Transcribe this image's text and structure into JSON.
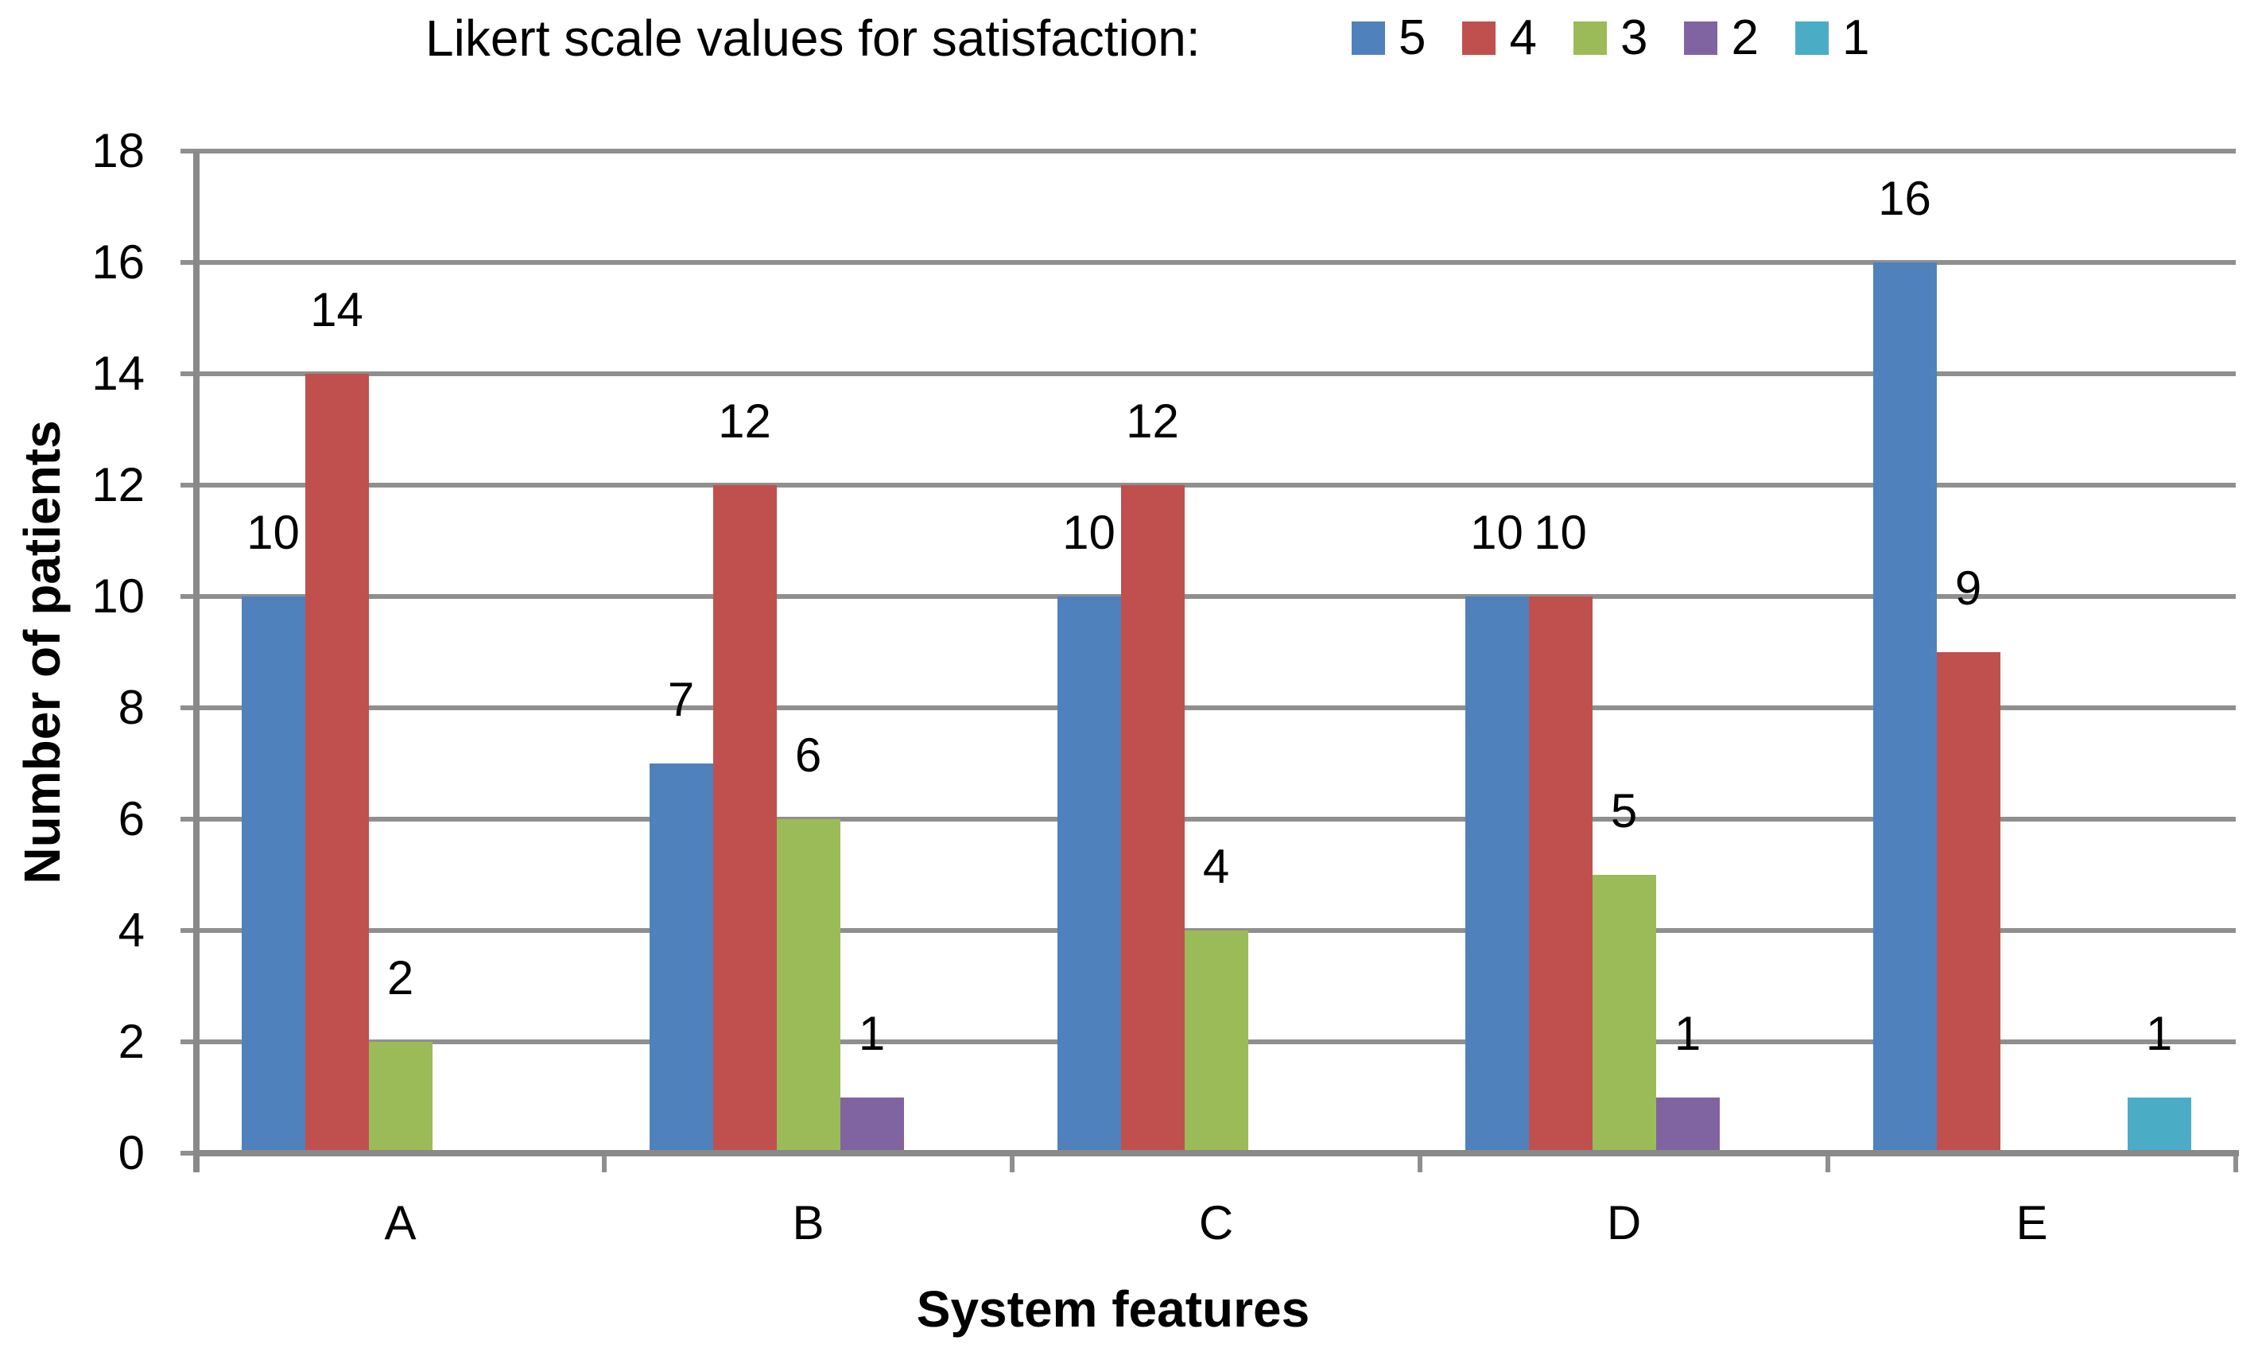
{
  "chart_data": {
    "type": "bar",
    "title": "Likert scale values for satisfaction:",
    "xlabel": "System features",
    "ylabel": "Number of patients",
    "categories": [
      "A",
      "B",
      "C",
      "D",
      "E"
    ],
    "series": [
      {
        "name": "5",
        "color": "#4F81BD",
        "values": [
          10,
          7,
          10,
          10,
          16
        ]
      },
      {
        "name": "4",
        "color": "#C0504D",
        "values": [
          14,
          12,
          12,
          10,
          9
        ]
      },
      {
        "name": "3",
        "color": "#9BBB59",
        "values": [
          2,
          6,
          4,
          5,
          0
        ]
      },
      {
        "name": "2",
        "color": "#8064A2",
        "values": [
          0,
          1,
          0,
          1,
          0
        ]
      },
      {
        "name": "1",
        "color": "#4BACC6",
        "values": [
          0,
          0,
          0,
          0,
          1
        ]
      }
    ],
    "data_labels": {
      "A": {
        "5": "10",
        "4": "14",
        "3": "2"
      },
      "B": {
        "5": "7",
        "4": "12",
        "3": "6",
        "2": "1"
      },
      "C": {
        "5": "10",
        "4": "12",
        "3": "4"
      },
      "D": {
        "5": "10",
        "4": "10",
        "3": "5",
        "2": "1"
      },
      "E": {
        "5": "16",
        "4": "9",
        "1": "1"
      }
    },
    "ylim": [
      0,
      18
    ],
    "ytick_step": 2,
    "ytick_labels": [
      "0",
      "2",
      "4",
      "6",
      "8",
      "10",
      "12",
      "14",
      "16",
      "18"
    ],
    "grid": true,
    "legend_position": "top-right",
    "legend_entries": [
      "5",
      "4",
      "3",
      "2",
      "1"
    ],
    "colors": {
      "grid": "#8F8F8F",
      "axis": "#898989",
      "text": "#000000",
      "background": "#FFFFFF"
    }
  }
}
